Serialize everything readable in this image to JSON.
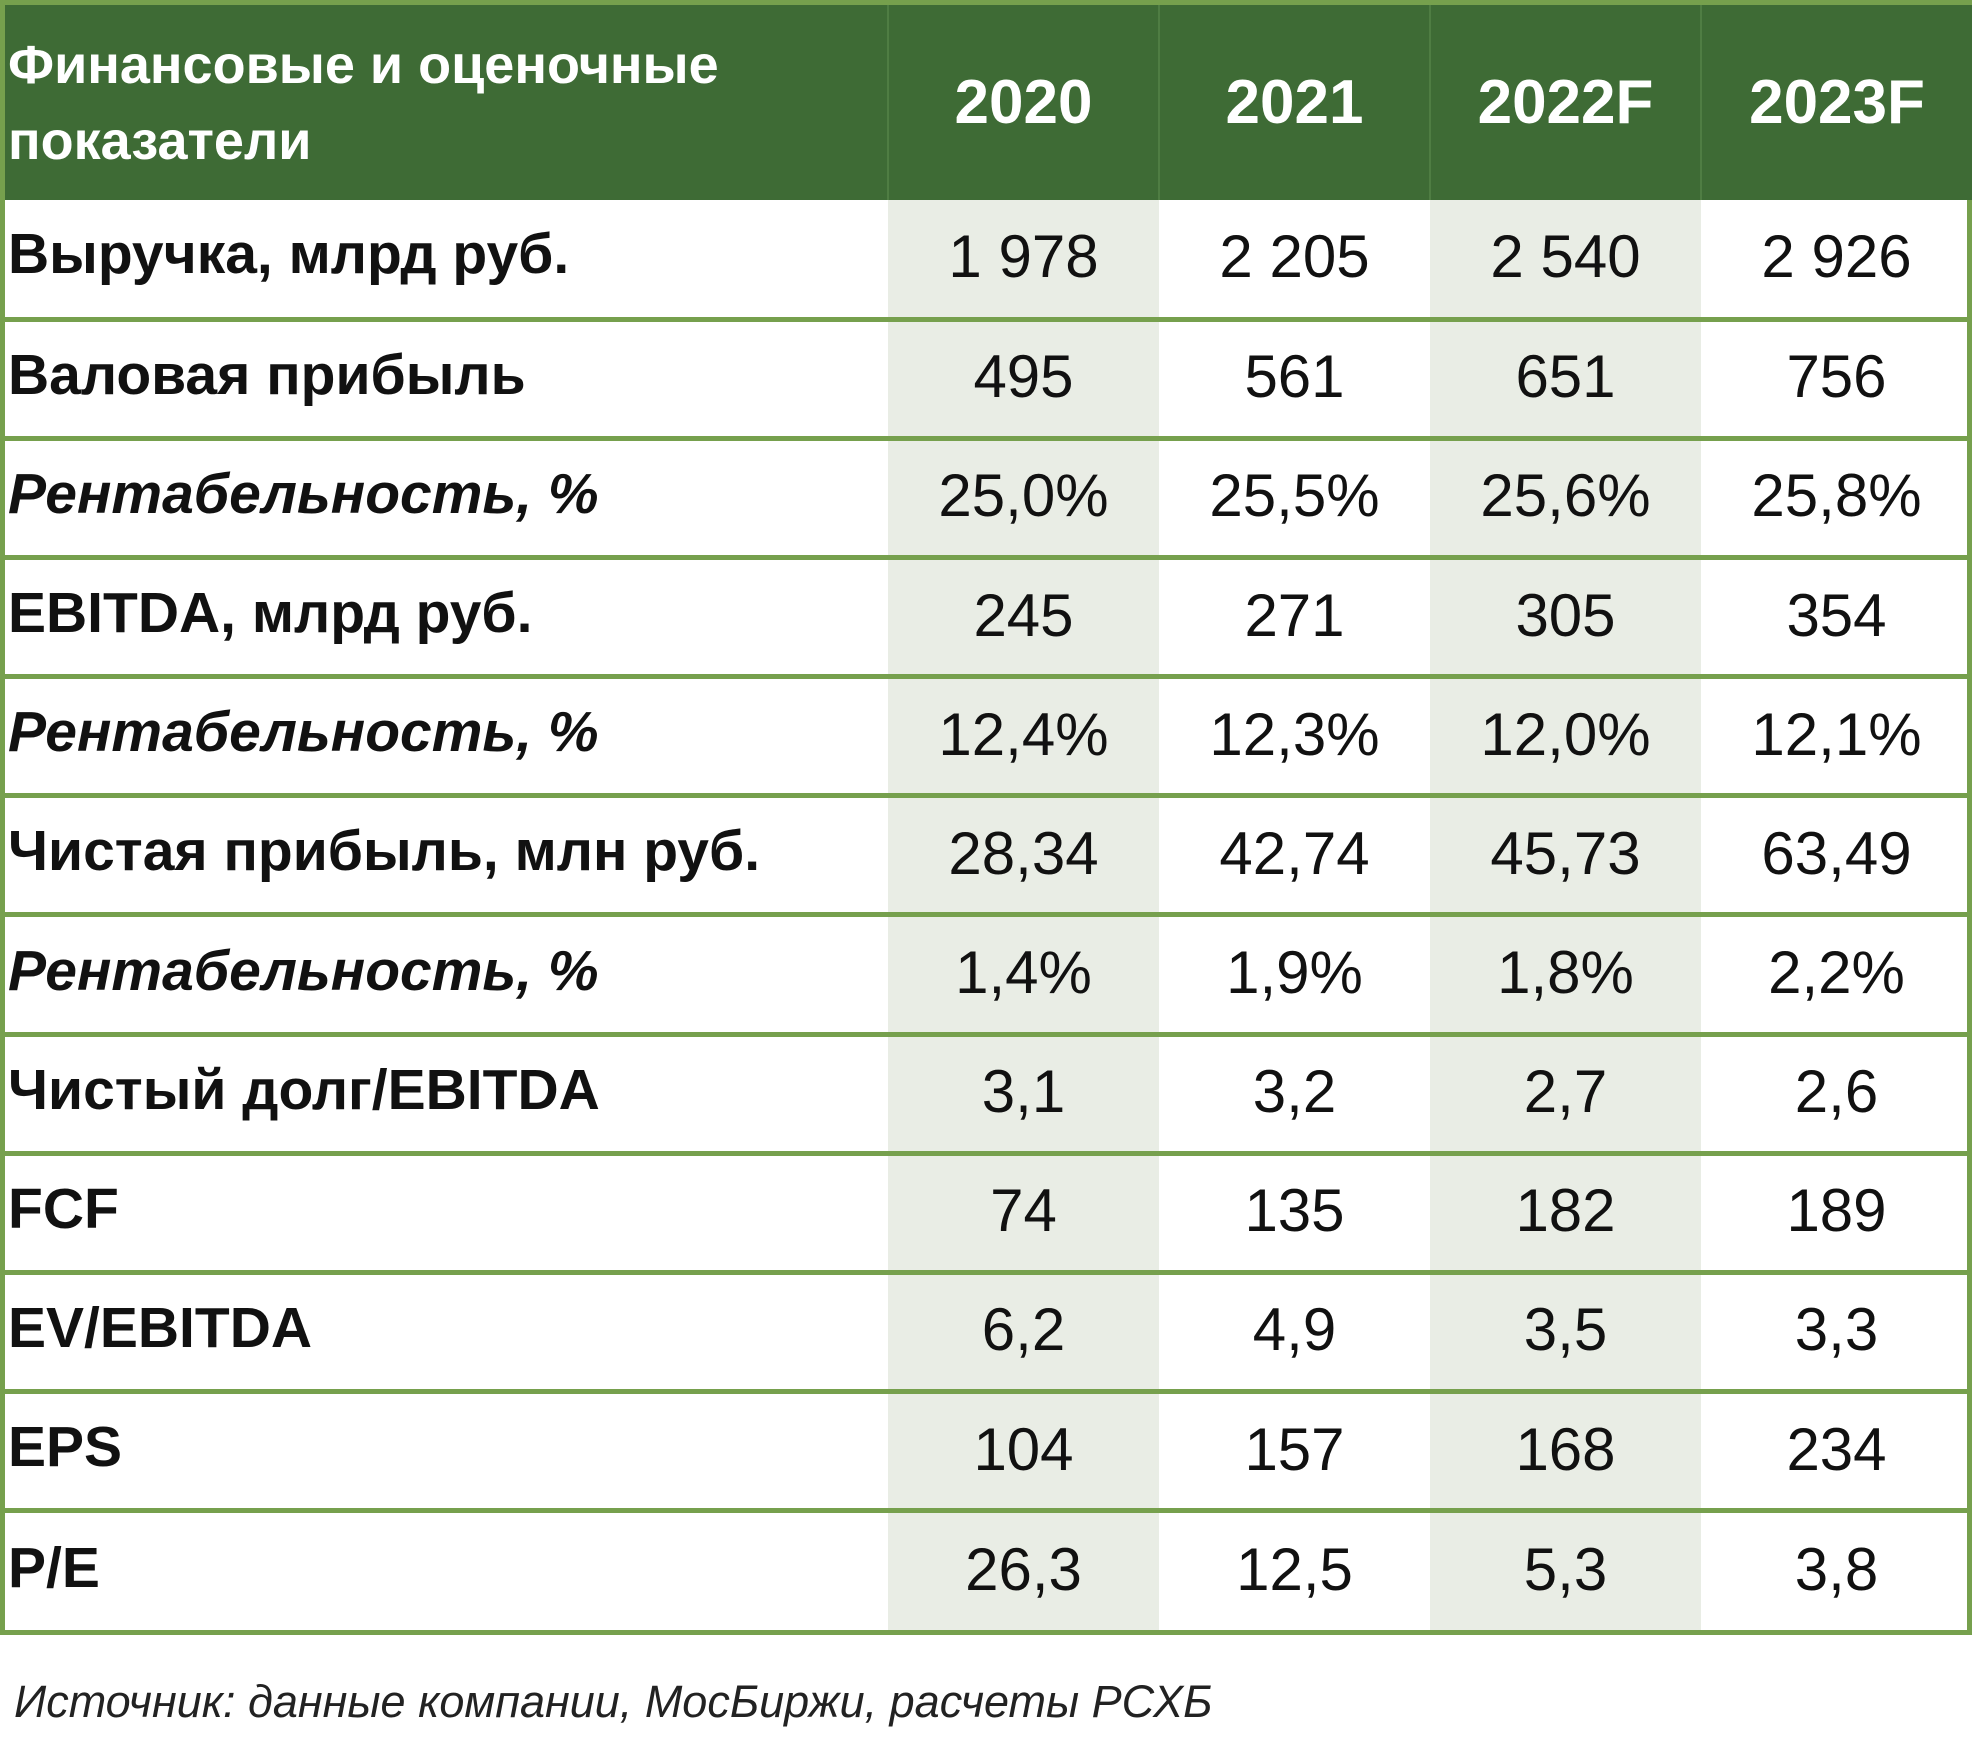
{
  "table": {
    "header": {
      "label_line1": "Финансовые и оценочные",
      "label_line2": "показатели",
      "years": [
        "2020",
        "2021",
        "2022F",
        "2023F"
      ]
    },
    "rows": [
      {
        "label": "Выручка, млрд руб.",
        "italic": false,
        "values": [
          "1 978",
          "2 205",
          "2 540",
          "2 926"
        ]
      },
      {
        "label": "Валовая прибыль",
        "italic": false,
        "values": [
          "495",
          "561",
          "651",
          "756"
        ]
      },
      {
        "label": "Рентабельность, %",
        "italic": true,
        "values": [
          "25,0%",
          "25,5%",
          "25,6%",
          "25,8%"
        ]
      },
      {
        "label": "EBITDA,  млрд руб.",
        "italic": false,
        "values": [
          "245",
          "271",
          "305",
          "354"
        ]
      },
      {
        "label": "Рентабельность, %",
        "italic": true,
        "values": [
          "12,4%",
          "12,3%",
          "12,0%",
          "12,1%"
        ]
      },
      {
        "label": "Чистая прибыль, млн руб.",
        "italic": false,
        "values": [
          "28,34",
          "42,74",
          "45,73",
          "63,49"
        ]
      },
      {
        "label": "Рентабельность, %",
        "italic": true,
        "values": [
          "1,4%",
          "1,9%",
          "1,8%",
          "2,2%"
        ]
      },
      {
        "label": "Чистый долг/EBITDA",
        "italic": false,
        "values": [
          "3,1",
          "3,2",
          "2,7",
          "2,6"
        ]
      },
      {
        "label": "FCF",
        "italic": false,
        "values": [
          "74",
          "135",
          "182",
          "189"
        ]
      },
      {
        "label": "EV/EBITDA",
        "italic": false,
        "values": [
          "6,2",
          "4,9",
          "3,5",
          "3,3"
        ]
      },
      {
        "label": "EPS",
        "italic": false,
        "values": [
          "104",
          "157",
          "168",
          "234"
        ]
      },
      {
        "label": "P/E",
        "italic": false,
        "values": [
          "26,3",
          "12,5",
          "5,3",
          "3,8"
        ]
      }
    ]
  },
  "source": "Источник: данные компании, МосБиржи, расчеты РСХБ",
  "colors": {
    "header_bg": "#3e6b35",
    "border": "#76a04d",
    "shade": "#e9ede5"
  }
}
